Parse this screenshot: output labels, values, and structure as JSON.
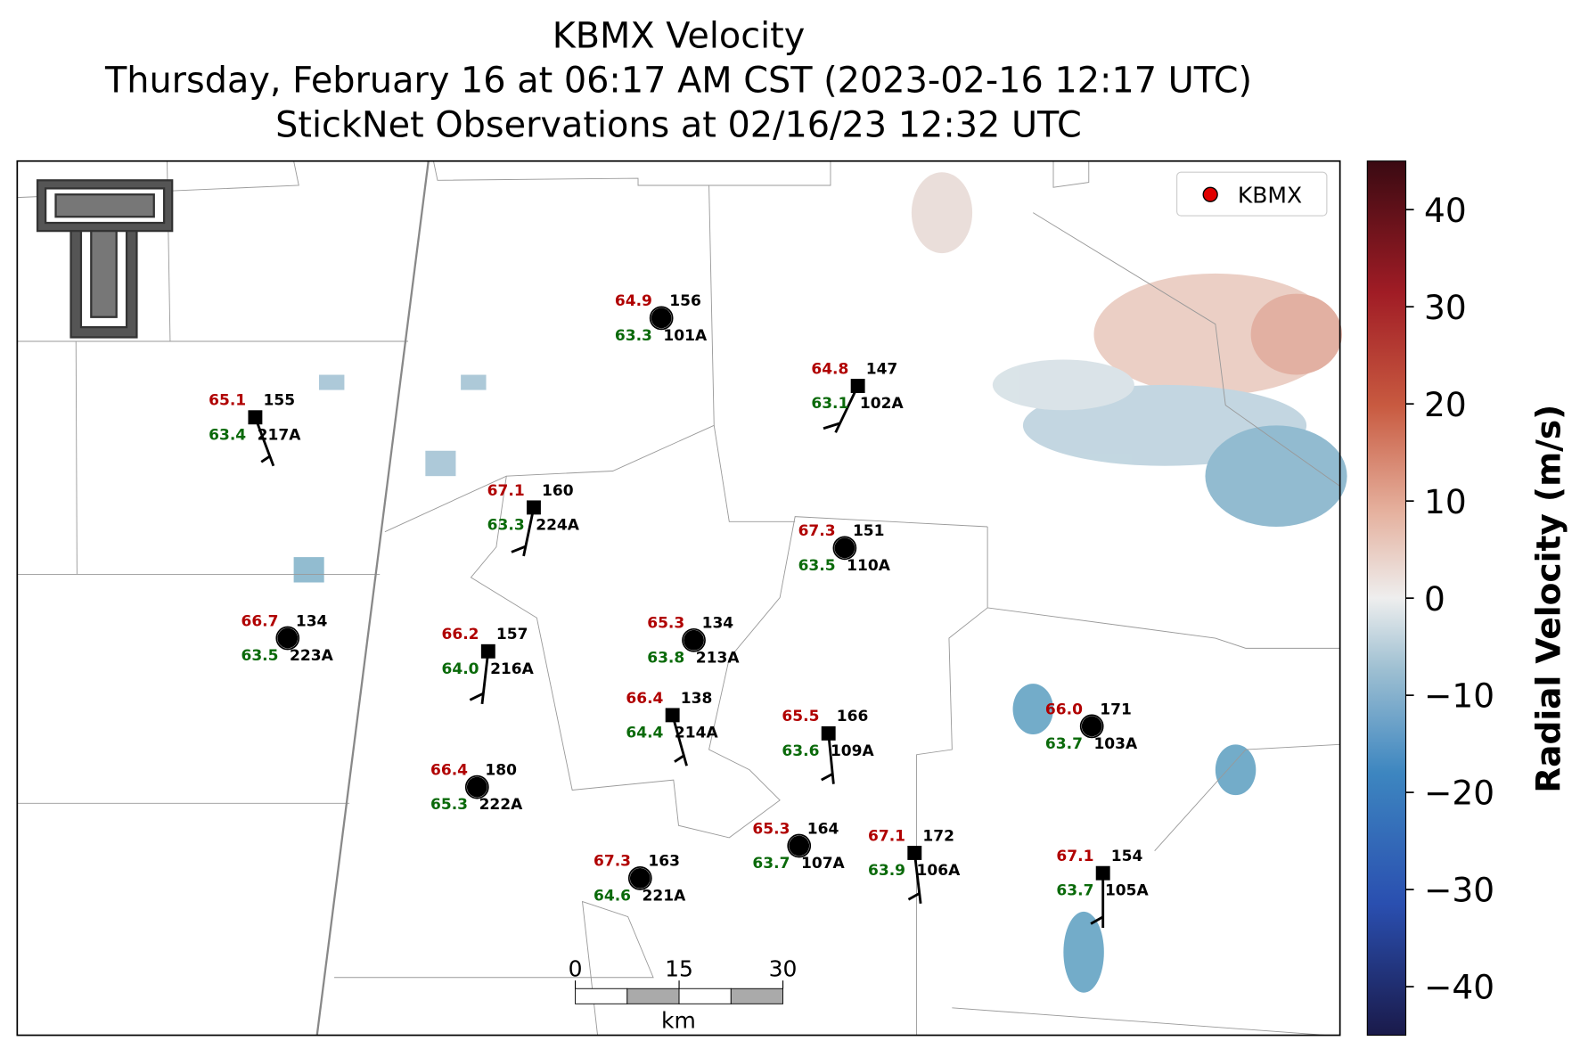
{
  "title": [
    "KBMX Velocity",
    "Thursday, February 16 at 06:17 AM CST (2023-02-16 12:17 UTC)",
    "StickNet Observations at 02/16/23 12:32 UTC"
  ],
  "legend": {
    "label": "KBMX",
    "color": "#e00000"
  },
  "stations": [
    {
      "temp": "64.9",
      "value": "156",
      "dewpoint": "63.3",
      "id": "101A"
    },
    {
      "temp": "64.8",
      "value": "147",
      "dewpoint": "63.1",
      "id": "102A"
    },
    {
      "temp": "65.1",
      "value": "155",
      "dewpoint": "63.4",
      "id": "217A"
    },
    {
      "temp": "67.1",
      "value": "160",
      "dewpoint": "63.3",
      "id": "224A"
    },
    {
      "temp": "67.3",
      "value": "151",
      "dewpoint": "63.5",
      "id": "110A"
    },
    {
      "temp": "66.7",
      "value": "134",
      "dewpoint": "63.5",
      "id": "223A"
    },
    {
      "temp": "66.2",
      "value": "157",
      "dewpoint": "64.0",
      "id": "216A"
    },
    {
      "temp": "65.3",
      "value": "134",
      "dewpoint": "63.8",
      "id": "213A"
    },
    {
      "temp": "66.4",
      "value": "138",
      "dewpoint": "64.4",
      "id": "214A"
    },
    {
      "temp": "65.5",
      "value": "166",
      "dewpoint": "63.6",
      "id": "109A"
    },
    {
      "temp": "66.0",
      "value": "171",
      "dewpoint": "63.7",
      "id": "103A"
    },
    {
      "temp": "66.4",
      "value": "180",
      "dewpoint": "65.3",
      "id": "222A"
    },
    {
      "temp": "65.3",
      "value": "164",
      "dewpoint": "63.7",
      "id": "107A"
    },
    {
      "temp": "67.1",
      "value": "172",
      "dewpoint": "63.9",
      "id": "106A"
    },
    {
      "temp": "67.3",
      "value": "163",
      "dewpoint": "64.6",
      "id": "221A"
    },
    {
      "temp": "67.1",
      "value": "154",
      "dewpoint": "63.7",
      "id": "105A"
    }
  ],
  "colorbar": {
    "label": "Radial Velocity (m/s)",
    "lim": [
      -45,
      45
    ],
    "ticks": [
      40,
      30,
      20,
      10,
      0,
      {
        "value": -10,
        "label": "−10"
      },
      {
        "value": -20,
        "label": "−20"
      },
      {
        "value": -30,
        "label": "−30"
      },
      {
        "value": -40,
        "label": "−40"
      }
    ]
  },
  "scalebar": {
    "ticks": [
      0,
      15,
      30
    ],
    "unit": "km"
  }
}
